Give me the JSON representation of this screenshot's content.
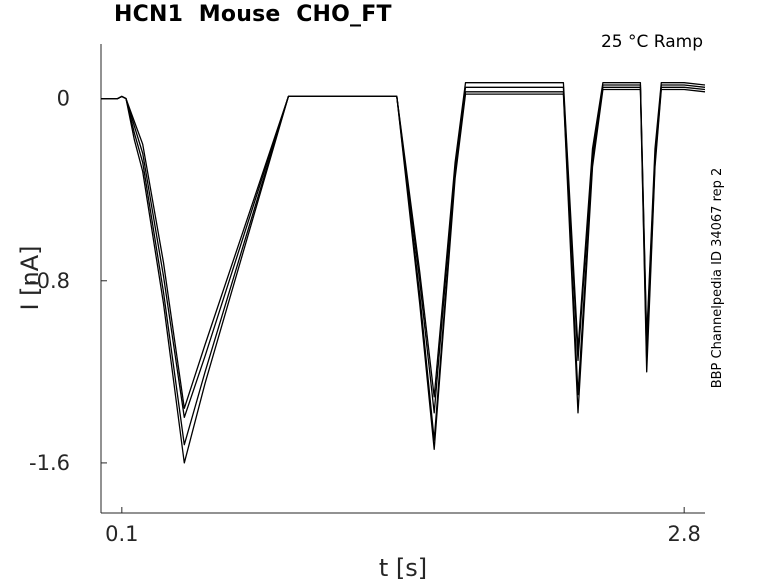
{
  "chart_data": {
    "type": "line",
    "title": "HCN1  Mouse  CHO_FT",
    "annotation": "25 °C  Ramp",
    "side_label": "BBP Channelpedia ID 34067 rep 2",
    "xlabel": "t [s]",
    "ylabel": "I [nA]",
    "xlim": [
      0.0,
      2.9
    ],
    "ylim": [
      -1.82,
      0.24
    ],
    "x_ticks": [
      0.1,
      2.8
    ],
    "x_tick_labels": [
      "0.1",
      "2.8"
    ],
    "y_ticks": [
      0,
      -0.8,
      -1.6
    ],
    "y_tick_labels": [
      "0",
      "-0.8",
      "-1.6"
    ],
    "grid": false,
    "colors": {
      "trace": "#000000",
      "axis": "#262626"
    },
    "series": [
      {
        "x": [
          0.0,
          0.05,
          0.08,
          0.1,
          0.12,
          0.16,
          0.2,
          0.3,
          0.4,
          0.5,
          0.9,
          1.3,
          1.42,
          1.53,
          1.6,
          1.7,
          1.75,
          1.85,
          2.22,
          2.29,
          2.36,
          2.41,
          2.59,
          2.62,
          2.66,
          2.69,
          2.8,
          2.9
        ],
        "y": [
          0.0,
          0.0,
          0.0,
          0.01,
          0.0,
          -0.18,
          -0.32,
          -0.9,
          -1.6,
          -1.25,
          0.01,
          0.01,
          0.01,
          -0.9,
          -1.54,
          -0.35,
          0.02,
          0.02,
          0.02,
          -1.38,
          -0.3,
          0.04,
          0.04,
          -1.2,
          -0.3,
          0.04,
          0.04,
          0.03
        ]
      },
      {
        "x": [
          0.0,
          0.05,
          0.08,
          0.1,
          0.12,
          0.16,
          0.2,
          0.3,
          0.4,
          0.5,
          0.9,
          1.3,
          1.42,
          1.53,
          1.6,
          1.7,
          1.75,
          1.85,
          2.22,
          2.29,
          2.36,
          2.41,
          2.59,
          2.62,
          2.66,
          2.69,
          2.8,
          2.9
        ],
        "y": [
          0.0,
          0.0,
          0.0,
          0.01,
          0.0,
          -0.15,
          -0.28,
          -0.85,
          -1.52,
          -1.2,
          0.01,
          0.01,
          0.01,
          -0.86,
          -1.5,
          -0.33,
          0.03,
          0.03,
          0.03,
          -1.3,
          -0.28,
          0.05,
          0.05,
          -1.15,
          -0.28,
          0.05,
          0.05,
          0.04
        ]
      },
      {
        "x": [
          0.0,
          0.05,
          0.08,
          0.1,
          0.12,
          0.16,
          0.2,
          0.3,
          0.4,
          0.5,
          0.9,
          1.3,
          1.42,
          1.53,
          1.6,
          1.7,
          1.75,
          1.85,
          2.22,
          2.29,
          2.36,
          2.41,
          2.59,
          2.62,
          2.66,
          2.69,
          2.8,
          2.9
        ],
        "y": [
          0.0,
          0.0,
          0.0,
          0.01,
          0.0,
          -0.12,
          -0.24,
          -0.78,
          -1.4,
          -1.13,
          0.01,
          0.01,
          0.01,
          -0.8,
          -1.38,
          -0.3,
          0.05,
          0.05,
          0.05,
          -1.15,
          -0.25,
          0.06,
          0.06,
          -1.08,
          -0.25,
          0.06,
          0.06,
          0.05
        ]
      },
      {
        "x": [
          0.0,
          0.05,
          0.08,
          0.1,
          0.12,
          0.16,
          0.2,
          0.3,
          0.4,
          0.5,
          0.9,
          1.3,
          1.42,
          1.53,
          1.6,
          1.7,
          1.75,
          1.85,
          2.22,
          2.29,
          2.36,
          2.41,
          2.59,
          2.62,
          2.66,
          2.69,
          2.8,
          2.9
        ],
        "y": [
          0.0,
          0.0,
          0.0,
          0.01,
          0.0,
          -0.1,
          -0.2,
          -0.72,
          -1.36,
          -1.08,
          0.01,
          0.01,
          0.01,
          -0.76,
          -1.31,
          -0.28,
          0.07,
          0.07,
          0.07,
          -1.1,
          -0.22,
          0.07,
          0.07,
          -1.05,
          -0.22,
          0.07,
          0.07,
          0.06
        ]
      }
    ]
  }
}
